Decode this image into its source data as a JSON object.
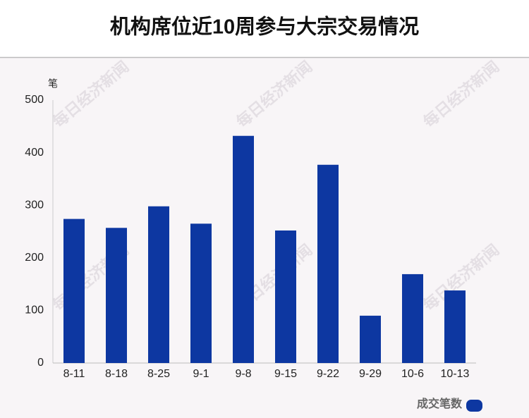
{
  "chart_data": {
    "type": "bar",
    "title": "机构席位近10周参与大宗交易情况",
    "y_axis_label": "笔",
    "categories": [
      "8-11",
      "8-18",
      "8-25",
      "9-1",
      "9-8",
      "9-15",
      "9-22",
      "9-29",
      "10-6",
      "10-13"
    ],
    "series": [
      {
        "name": "成交笔数",
        "color": "#0d37a1",
        "values": [
          274,
          257,
          298,
          265,
          432,
          252,
          377,
          90,
          169,
          138
        ]
      }
    ],
    "ylim": [
      0,
      500
    ],
    "yticks": [
      0,
      100,
      200,
      300,
      400,
      500
    ],
    "grid": true,
    "legend": "bottom-right",
    "watermark": "每日经济新闻"
  }
}
